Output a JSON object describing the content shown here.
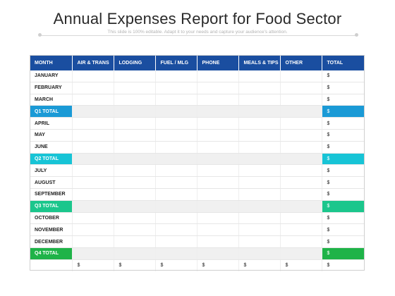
{
  "title": "Annual Expenses Report for Food Sector",
  "subtitle": "This slide is 100% editable. Adapt it to your needs and capture your audience's attention.",
  "columns": [
    "MONTH",
    "AIR & TRANS",
    "LODGING",
    "FUEL / MLG",
    "PHONE",
    "MEALS & TIPS",
    "OTHER",
    "TOTAL"
  ],
  "rows": {
    "jan": "JANUARY",
    "feb": "FEBRUARY",
    "mar": "MARCH",
    "q1": "Q1 TOTAL",
    "apr": "APRIL",
    "may": "MAY",
    "jun": "JUNE",
    "q2": "Q2 TOTAL",
    "jul": "JULY",
    "aug": "AUGUST",
    "sep": "SEPTEMBER",
    "q3": "Q3 TOTAL",
    "oct": "OCTOBER",
    "nov": "NOVEMBER",
    "dec": "DECEMBER",
    "q4": "Q4 TOTAL"
  },
  "currency": "$",
  "colors": {
    "header": "#1a4ea0",
    "q1": "#1a9ad6",
    "q2": "#17c4d6",
    "q3": "#1bc68c",
    "q4": "#1fb348"
  }
}
